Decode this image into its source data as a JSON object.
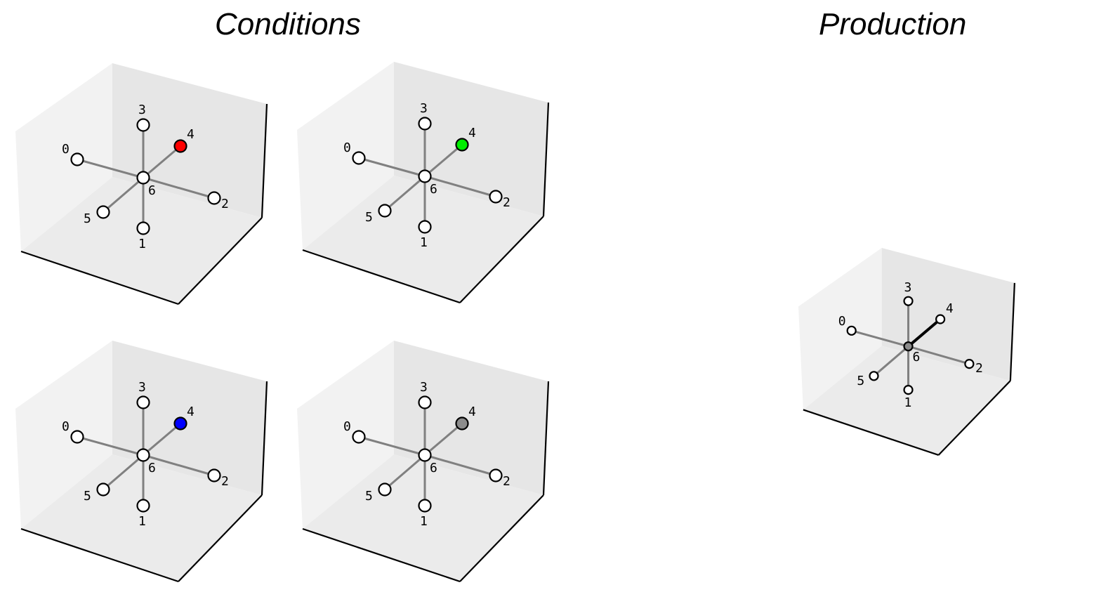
{
  "titles": {
    "conditions": "Conditions",
    "production": "Production"
  },
  "colors": {
    "edge": "#808080",
    "highlight_edge": "#000000",
    "node_fill": "#ffffff",
    "node_stroke": "#000000",
    "pane_back": "#e6e6e6",
    "pane_left": "#f2f2f2",
    "pane_floor": "#ebebeb"
  },
  "panels": [
    {
      "id": "condition-red",
      "group": "conditions",
      "highlight_node": "4",
      "highlight_color": "#ff0000",
      "center_color": "#ffffff",
      "highlight_edge": null
    },
    {
      "id": "condition-green",
      "group": "conditions",
      "highlight_node": "4",
      "highlight_color": "#00ee00",
      "center_color": "#ffffff",
      "highlight_edge": null
    },
    {
      "id": "condition-blue",
      "group": "conditions",
      "highlight_node": "4",
      "highlight_color": "#0000ff",
      "center_color": "#ffffff",
      "highlight_edge": null
    },
    {
      "id": "condition-gray",
      "group": "conditions",
      "highlight_node": "4",
      "highlight_color": "#8c8c8c",
      "center_color": "#ffffff",
      "highlight_edge": null
    },
    {
      "id": "production",
      "group": "production",
      "highlight_node": null,
      "highlight_color": null,
      "center_color": "#8c8c8c",
      "highlight_edge": [
        "6",
        "4"
      ]
    }
  ],
  "graph": {
    "nodes": [
      "0",
      "1",
      "2",
      "3",
      "4",
      "5",
      "6"
    ],
    "center": "6",
    "edges": [
      [
        "6",
        "0"
      ],
      [
        "6",
        "1"
      ],
      [
        "6",
        "2"
      ],
      [
        "6",
        "3"
      ],
      [
        "6",
        "4"
      ],
      [
        "6",
        "5"
      ]
    ]
  }
}
